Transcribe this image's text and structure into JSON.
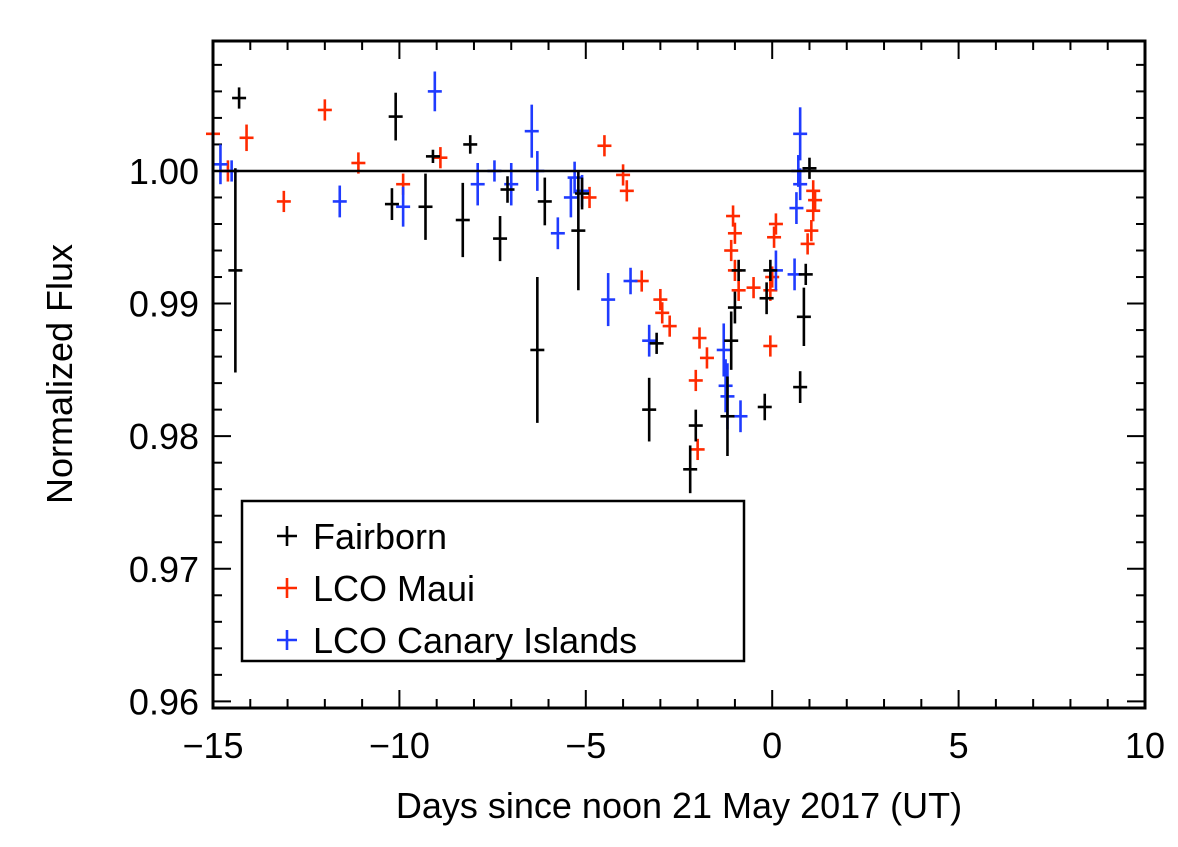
{
  "chart_data": {
    "type": "scatter",
    "title": "",
    "xlabel": "Days since noon 21 May 2017 (UT)",
    "ylabel": "Normalized Flux",
    "xlim": [
      -15,
      10
    ],
    "ylim": [
      0.9595,
      1.0098
    ],
    "x_ticks": [
      -15,
      -10,
      -5,
      0,
      5,
      10
    ],
    "x_tick_labels": [
      "−15",
      "−10",
      "−5",
      "0",
      "5",
      "10"
    ],
    "y_ticks": [
      0.96,
      0.97,
      0.98,
      0.99,
      1.0
    ],
    "y_tick_labels": [
      "0.96",
      "0.97",
      "0.98",
      "0.99",
      "1.00"
    ],
    "reference_line": 1.0,
    "legend_position": "bottom-left",
    "series": [
      {
        "name": "Fairborn",
        "color": "#000000",
        "points": [
          {
            "x": -14.3,
            "y": 1.0055,
            "err": 0.0008
          },
          {
            "x": -14.4,
            "y": 0.9925,
            "err": 0.0077
          },
          {
            "x": -10.1,
            "y": 1.0041,
            "err": 0.0018
          },
          {
            "x": -10.2,
            "y": 0.9975,
            "err": 0.0012
          },
          {
            "x": -9.3,
            "y": 0.9973,
            "err": 0.0025
          },
          {
            "x": -9.1,
            "y": 1.0011,
            "err": 0.0005
          },
          {
            "x": -8.3,
            "y": 0.9963,
            "err": 0.0028
          },
          {
            "x": -8.1,
            "y": 1.002,
            "err": 0.0007
          },
          {
            "x": -7.3,
            "y": 0.9949,
            "err": 0.0017
          },
          {
            "x": -7.1,
            "y": 0.9986,
            "err": 0.001
          },
          {
            "x": -6.3,
            "y": 0.9865,
            "err": 0.0055
          },
          {
            "x": -6.1,
            "y": 0.9977,
            "err": 0.0018
          },
          {
            "x": -5.2,
            "y": 0.9955,
            "err": 0.0045
          },
          {
            "x": -5.1,
            "y": 0.9983,
            "err": 0.0012
          },
          {
            "x": -3.3,
            "y": 0.982,
            "err": 0.0024
          },
          {
            "x": -3.1,
            "y": 0.987,
            "err": 0.0008
          },
          {
            "x": -2.2,
            "y": 0.9775,
            "err": 0.0018
          },
          {
            "x": -2.05,
            "y": 0.9808,
            "err": 0.0012
          },
          {
            "x": -1.2,
            "y": 0.9815,
            "err": 0.003
          },
          {
            "x": -1.1,
            "y": 0.9872,
            "err": 0.0022
          },
          {
            "x": -1.0,
            "y": 0.9897,
            "err": 0.0012
          },
          {
            "x": -0.9,
            "y": 0.9925,
            "err": 0.0008
          },
          {
            "x": -0.2,
            "y": 0.9822,
            "err": 0.001
          },
          {
            "x": -0.15,
            "y": 0.9904,
            "err": 0.0012
          },
          {
            "x": -0.05,
            "y": 0.9925,
            "err": 0.0008
          },
          {
            "x": 0.75,
            "y": 0.9837,
            "err": 0.0012
          },
          {
            "x": 0.85,
            "y": 0.989,
            "err": 0.0022
          },
          {
            "x": 0.9,
            "y": 0.9922,
            "err": 0.0008
          },
          {
            "x": 1.0,
            "y": 1.0002,
            "err": 0.0008
          }
        ]
      },
      {
        "name": "LCO Maui",
        "color": "#ff2a00",
        "points": [
          {
            "x": -15.0,
            "y": 1.0028,
            "err": 0.0012
          },
          {
            "x": -14.6,
            "y": 1.0,
            "err": 0.0008
          },
          {
            "x": -14.1,
            "y": 1.0025,
            "err": 0.001
          },
          {
            "x": -13.1,
            "y": 0.9977,
            "err": 0.0008
          },
          {
            "x": -12.0,
            "y": 1.0046,
            "err": 0.0008
          },
          {
            "x": -11.1,
            "y": 1.0006,
            "err": 0.0008
          },
          {
            "x": -9.9,
            "y": 0.999,
            "err": 0.0008
          },
          {
            "x": -8.9,
            "y": 1.001,
            "err": 0.0008
          },
          {
            "x": -4.9,
            "y": 0.998,
            "err": 0.0008
          },
          {
            "x": -4.5,
            "y": 1.0019,
            "err": 0.0008
          },
          {
            "x": -4.0,
            "y": 0.9997,
            "err": 0.0008
          },
          {
            "x": -3.9,
            "y": 0.9985,
            "err": 0.0008
          },
          {
            "x": -3.5,
            "y": 0.9917,
            "err": 0.0008
          },
          {
            "x": -3.0,
            "y": 0.9903,
            "err": 0.0008
          },
          {
            "x": -2.95,
            "y": 0.9893,
            "err": 0.0008
          },
          {
            "x": -2.75,
            "y": 0.9883,
            "err": 0.0008
          },
          {
            "x": -1.95,
            "y": 0.9874,
            "err": 0.0008
          },
          {
            "x": -1.75,
            "y": 0.9859,
            "err": 0.0008
          },
          {
            "x": -2.05,
            "y": 0.9842,
            "err": 0.0008
          },
          {
            "x": -2.0,
            "y": 0.979,
            "err": 0.0008
          },
          {
            "x": -1.05,
            "y": 0.9966,
            "err": 0.0008
          },
          {
            "x": -1.0,
            "y": 0.9953,
            "err": 0.0008
          },
          {
            "x": -1.1,
            "y": 0.994,
            "err": 0.0008
          },
          {
            "x": -1.0,
            "y": 0.9925,
            "err": 0.0008
          },
          {
            "x": -0.9,
            "y": 0.991,
            "err": 0.0008
          },
          {
            "x": -0.5,
            "y": 0.9912,
            "err": 0.0008
          },
          {
            "x": 0.1,
            "y": 0.996,
            "err": 0.0008
          },
          {
            "x": 0.05,
            "y": 0.995,
            "err": 0.0008
          },
          {
            "x": 0.0,
            "y": 0.992,
            "err": 0.0008
          },
          {
            "x": -0.05,
            "y": 0.991,
            "err": 0.0008
          },
          {
            "x": -0.05,
            "y": 0.9868,
            "err": 0.0008
          },
          {
            "x": 0.95,
            "y": 0.9945,
            "err": 0.0008
          },
          {
            "x": 1.05,
            "y": 0.9955,
            "err": 0.0008
          },
          {
            "x": 1.1,
            "y": 0.997,
            "err": 0.0008
          },
          {
            "x": 1.15,
            "y": 0.9978,
            "err": 0.0008
          },
          {
            "x": 1.1,
            "y": 0.9985,
            "err": 0.0008
          }
        ]
      },
      {
        "name": "LCO Canary Islands",
        "color": "#1f3bff",
        "points": [
          {
            "x": -14.8,
            "y": 1.0005,
            "err": 0.0015
          },
          {
            "x": -14.5,
            "y": 1.0,
            "err": 0.0008
          },
          {
            "x": -11.6,
            "y": 0.9977,
            "err": 0.0012
          },
          {
            "x": -9.9,
            "y": 0.9973,
            "err": 0.0015
          },
          {
            "x": -9.05,
            "y": 1.006,
            "err": 0.0015
          },
          {
            "x": -7.9,
            "y": 0.999,
            "err": 0.0016
          },
          {
            "x": -7.45,
            "y": 1.0,
            "err": 0.0008
          },
          {
            "x": -7.0,
            "y": 0.999,
            "err": 0.0016
          },
          {
            "x": -6.45,
            "y": 1.003,
            "err": 0.002
          },
          {
            "x": -6.3,
            "y": 1.0,
            "err": 0.0015
          },
          {
            "x": -5.75,
            "y": 0.9953,
            "err": 0.0012
          },
          {
            "x": -5.4,
            "y": 0.998,
            "err": 0.0015
          },
          {
            "x": -5.3,
            "y": 0.9995,
            "err": 0.0012
          },
          {
            "x": -5.1,
            "y": 0.9985,
            "err": 0.0012
          },
          {
            "x": -4.4,
            "y": 0.9903,
            "err": 0.002
          },
          {
            "x": -3.8,
            "y": 0.9917,
            "err": 0.001
          },
          {
            "x": -3.3,
            "y": 0.9872,
            "err": 0.0012
          },
          {
            "x": -1.3,
            "y": 0.9865,
            "err": 0.002
          },
          {
            "x": -1.25,
            "y": 0.9838,
            "err": 0.002
          },
          {
            "x": -1.2,
            "y": 0.983,
            "err": 0.0025
          },
          {
            "x": -0.85,
            "y": 0.9815,
            "err": 0.0012
          },
          {
            "x": 0.1,
            "y": 0.9925,
            "err": 0.0015
          },
          {
            "x": 0.6,
            "y": 0.9922,
            "err": 0.0012
          },
          {
            "x": 0.65,
            "y": 0.9972,
            "err": 0.0012
          },
          {
            "x": 0.75,
            "y": 0.999,
            "err": 0.0012
          },
          {
            "x": 0.7,
            "y": 1.0,
            "err": 0.0012
          },
          {
            "x": 0.75,
            "y": 1.0028,
            "err": 0.002
          }
        ]
      }
    ]
  }
}
